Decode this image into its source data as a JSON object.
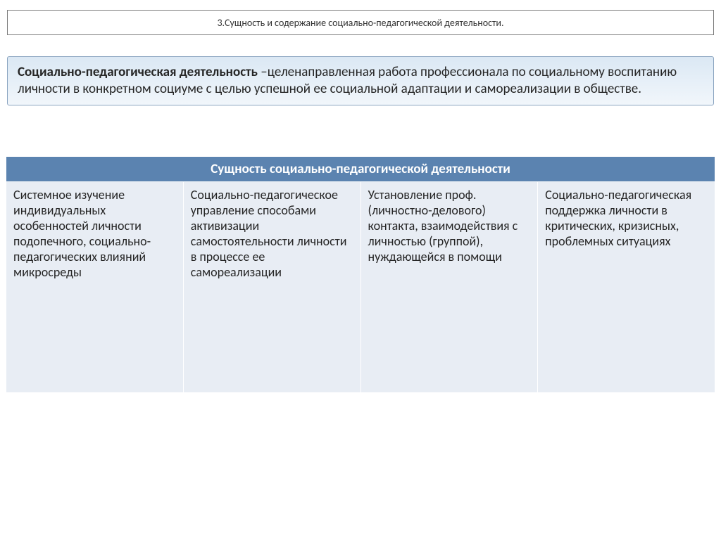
{
  "title": "3.Сущность и содержание социально-педагогической деятельности.",
  "definition": {
    "term": "Социально-педагогическая деятельность ",
    "body": "–целенаправленная  работа профессионала по социальному воспитанию личности в конкретном социуме с целью успешной ее социальной адаптации и самореализации в обществе."
  },
  "table": {
    "header": "Сущность социально-педагогической деятельности",
    "cells": [
      "Системное изучение индивидуальных особенностей личности подопечного, социально-педагогических влияний микросреды",
      "Социально-педагогическое управление способами активизации самостоятельности личности в процессе ее самореализации",
      "Установление проф. (личностно-делового) контакта, взаимодействия с личностью (группой), нуждающейся в помощи",
      "Социально-педагогическая поддержка личности в критических, кризисных, проблемных ситуациях"
    ],
    "header_bg": "#5b83b0",
    "header_fg": "#ffffff",
    "cell_bg": "#e8edf4",
    "cell_fg": "#262626"
  },
  "colors": {
    "definition_gradient_top": "#dbe8f4",
    "definition_gradient_bottom": "#f1f6fb",
    "definition_border": "#8aa4c0",
    "title_border": "#7a7a7a"
  },
  "fonts": {
    "title_size_pt": 10,
    "definition_size_pt": 14,
    "table_header_size_pt": 14,
    "table_cell_size_pt": 13
  }
}
